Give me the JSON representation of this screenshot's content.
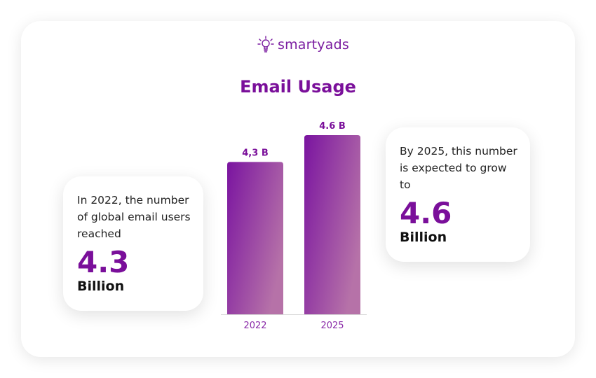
{
  "brand": {
    "name": "smartyads",
    "icon": "lightbulb-icon",
    "color": "#7a1ca0"
  },
  "chart_data": {
    "type": "bar",
    "title": "Email Usage",
    "categories": [
      "2022",
      "2025"
    ],
    "values": [
      4.3,
      4.6
    ],
    "data_labels": [
      "4,3 B",
      "4.6 B"
    ],
    "ylim": [
      2.6,
      4.8
    ],
    "grid": false,
    "bar_gradient": [
      "#7a14a0",
      "#b672a8"
    ]
  },
  "callouts": {
    "left": {
      "text": "In 2022, the number of global email users reached",
      "value": "4.3",
      "unit": "Billion"
    },
    "right": {
      "text": "By 2025, this number is expected to grow to",
      "value": "4.6",
      "unit": "Billion"
    }
  }
}
